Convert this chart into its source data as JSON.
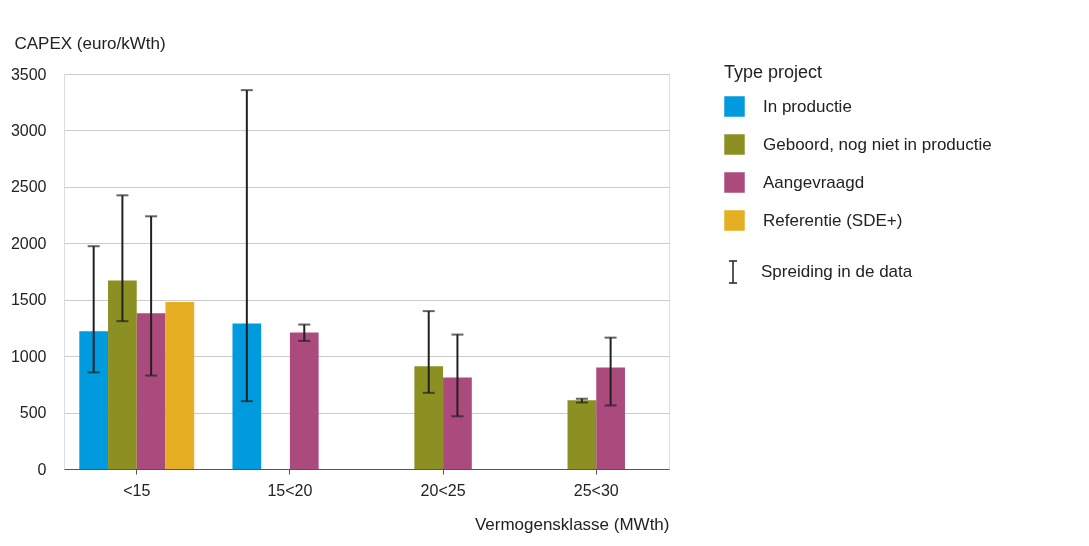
{
  "chart_data": {
    "type": "bar",
    "xlabel": "Vermogensklasse (MWth)",
    "ylabel": "CAPEX (euro/kWth)",
    "legend_title": "Type project",
    "categories": [
      "<15",
      "15<20",
      "20<25",
      "25<30"
    ],
    "series": [
      {
        "name": "In productie",
        "color": "#009ade",
        "values": [
          1220,
          1290,
          null,
          null
        ],
        "errors": [
          [
            856,
            1974
          ],
          [
            601,
            3357
          ],
          null,
          null
        ]
      },
      {
        "name": "Geboord, nog niet in productie",
        "color": "#8c9023",
        "values": [
          1670,
          null,
          910,
          610
        ],
        "errors": [
          [
            1310,
            2425
          ],
          null,
          [
            675,
            1399
          ],
          [
            590,
            623
          ]
        ]
      },
      {
        "name": "Aangevraagd",
        "color": "#ab4a7c",
        "values": [
          1380,
          1210,
          810,
          900
        ],
        "errors": [
          [
            828,
            2239
          ],
          [
            1135,
            1280
          ],
          [
            467,
            1191
          ],
          [
            563,
            1164
          ]
        ]
      },
      {
        "name": "Referentie (SDE+)",
        "color": "#e6ae22",
        "values": [
          1480,
          null,
          null,
          null
        ]
      }
    ],
    "annotations": [
      "Spreiding in de data"
    ],
    "ylim": [
      0,
      3500
    ],
    "yticks": [
      0,
      500,
      1000,
      1500,
      2000,
      2500,
      3000,
      3500
    ],
    "grid": "y",
    "legend": "top right"
  }
}
